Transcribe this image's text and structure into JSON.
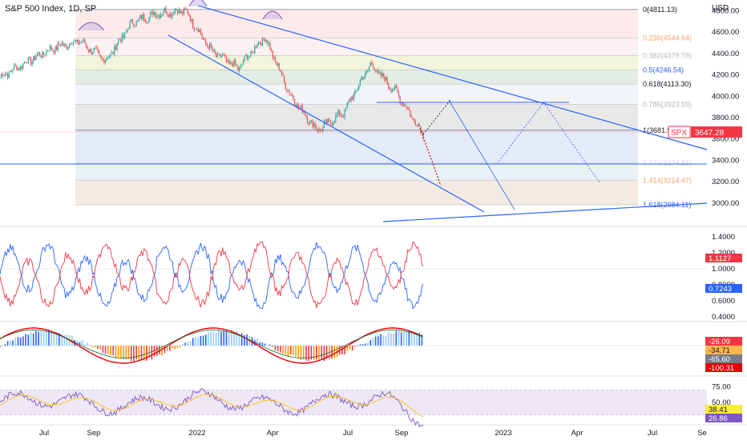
{
  "chart_data": {
    "type": "line",
    "title": "S&P 500 Index, 1D, SP",
    "currency": "USD",
    "symbol": "SPX",
    "last_price": 3647.28,
    "x_axis_labels": [
      "Jul",
      "Sep",
      "2022",
      "Apr",
      "Jul",
      "Sep",
      "2023",
      "Apr",
      "Jul",
      "Se"
    ],
    "price_axis": {
      "ticks": [
        3000,
        3200,
        3400,
        3600,
        3800,
        4000,
        4200,
        4400,
        4600,
        4800
      ],
      "range": [
        2820,
        4840
      ]
    },
    "price_series_approx": {
      "name": "SPX",
      "x": [
        "2021-06",
        "2021-07",
        "2021-08",
        "2021-09",
        "2021-10",
        "2021-11",
        "2021-12",
        "2022-01",
        "2022-02",
        "2022-03",
        "2022-04",
        "2022-05",
        "2022-06",
        "2022-07",
        "2022-08",
        "2022-09",
        "2022-10"
      ],
      "y": [
        4180,
        4320,
        4450,
        4520,
        4330,
        4690,
        4780,
        4800,
        4420,
        4260,
        4560,
        4000,
        3680,
        3850,
        4300,
        4030,
        3647
      ]
    },
    "fibonacci_levels": [
      {
        "ratio": "0",
        "label": "0(4811.13)",
        "value": 4811.13
      },
      {
        "ratio": "0.236",
        "label": "0.236(4544.64)",
        "value": 4544.64
      },
      {
        "ratio": "0.382",
        "label": "0.382(4379.78)",
        "value": 4379.78
      },
      {
        "ratio": "0.5",
        "label": "0.5(4246.54)",
        "value": 4246.54
      },
      {
        "ratio": "0.618",
        "label": "0.618(4113.30)",
        "value": 4113.3
      },
      {
        "ratio": "0.786",
        "label": "0.786(3923.59)",
        "value": 3923.59
      },
      {
        "ratio": "1",
        "label": "1(3681.95)",
        "value": 3681.95
      },
      {
        "ratio": "1.272",
        "label": "1.272(3374.81)",
        "value": 3374.81
      },
      {
        "ratio": "1.414",
        "label": "1.414(3214.47)",
        "value": 3214.47
      },
      {
        "ratio": "1.618",
        "label": "1.618(2984.11)",
        "value": 2984.11
      }
    ],
    "panel2": {
      "ticks": [
        "1.4000",
        "1.2000",
        "1.0000",
        "0.8000",
        "0.6000",
        "0.4000"
      ],
      "range": [
        0.38,
        1.48
      ],
      "badges": [
        {
          "text": "1.1127",
          "color": "#f23645"
        },
        {
          "text": "0.7243",
          "color": "#2962ff"
        }
      ]
    },
    "panel3": {
      "badges": [
        {
          "text": "-26.09",
          "color": "#f23645",
          "text_color": "#ffffff"
        },
        {
          "text": "-34.71",
          "color": "#ffb74d",
          "text_color": "#131722"
        },
        {
          "text": "-65.60",
          "color": "#787b86",
          "text_color": "#ffffff"
        },
        {
          "text": "-100.31",
          "color": "#e40000",
          "text_color": "#ffffff"
        }
      ]
    },
    "panel4": {
      "ticks": [
        "75.00",
        "50.00"
      ],
      "range": [
        18,
        82
      ],
      "badges": [
        {
          "text": "38.41",
          "color": "#ffeb3b",
          "text_color": "#131722"
        },
        {
          "text": "26.86",
          "color": "#7e57c2",
          "text_color": "#ffffff"
        }
      ]
    },
    "colors": {
      "up": "#26a69a",
      "down": "#ef5350",
      "channel": "#2962ff",
      "rsi": "#7e57c2",
      "rsi_ma": "#ffc107"
    }
  }
}
